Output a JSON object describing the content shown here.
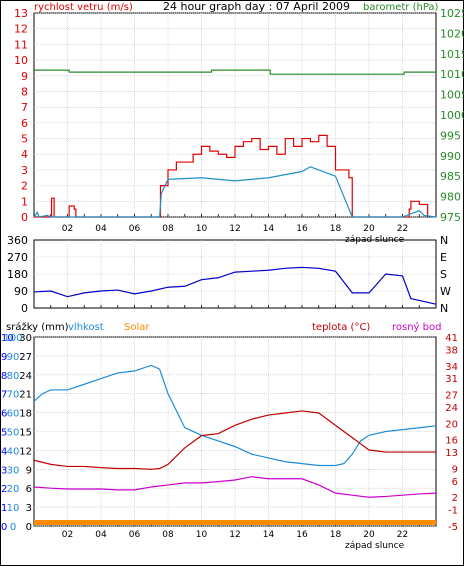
{
  "title": "24 hour graph day : 07 April 2009",
  "wind": {
    "left_label": "rychlost vetru (m/s)",
    "right_label": "barometr (hPa)",
    "left_ticks": [
      "0",
      "1",
      "2",
      "3",
      "4",
      "5",
      "6",
      "7",
      "8",
      "9",
      "10",
      "11",
      "12",
      "13"
    ],
    "right_ticks": [
      "975",
      "980",
      "985",
      "990",
      "995",
      "1000",
      "1005",
      "1010",
      "1015",
      "1020",
      "1025"
    ],
    "footer": "západ slunce",
    "colors": {
      "wind": "#e00000",
      "gust": "#e00000",
      "avg": "#2090c8",
      "baro": "#2a8a2a"
    }
  },
  "direction": {
    "left_ticks": [
      "0",
      "90",
      "180",
      "270",
      "360"
    ],
    "right_ticks": [
      "N",
      "W",
      "S",
      "E",
      "N"
    ],
    "color": "#0000c8"
  },
  "weather": {
    "labels": {
      "precip": "srážky (mm)",
      "humidity": "vlhkost",
      "solar": "Solar",
      "temp": "teplota (°C)",
      "dew": "rosný bod"
    },
    "precip_ticks": [
      "0",
      "1",
      "2",
      "3",
      "4",
      "5",
      "6",
      "7",
      "8",
      "9",
      "10"
    ],
    "humidity_ticks": [
      "0",
      "10",
      "20",
      "30",
      "40",
      "50",
      "60",
      "70",
      "80",
      "90",
      "100"
    ],
    "solar_ticks": [
      "0",
      "3",
      "6",
      "9",
      "12",
      "15",
      "18",
      "21",
      "24",
      "27",
      "30"
    ],
    "temp_ticks": [
      "-5",
      "-1",
      "2",
      "6",
      "9",
      "13",
      "16",
      "20",
      "24",
      "27",
      "31",
      "34",
      "38",
      "41"
    ],
    "footer": "západ slunce",
    "colors": {
      "precip": "#0000ff",
      "humidity": "#1e8ad8",
      "solar": "#ff8c00",
      "temp": "#c00000",
      "dew": "#cc00cc"
    }
  },
  "hour_ticks": [
    "02",
    "04",
    "06",
    "08",
    "10",
    "12",
    "14",
    "16",
    "18",
    "20",
    "22"
  ],
  "chart_data": [
    {
      "type": "line",
      "title": "24 hour graph day : 07 April 2009",
      "x_unit": "hour",
      "xlim": [
        0,
        24
      ],
      "ylabel": "rychlost vetru (m/s)",
      "ylim": [
        0,
        13
      ],
      "y2label": "barometr (hPa)",
      "y2lim": [
        975,
        1025
      ],
      "series": [
        {
          "name": "rychlost vetru",
          "axis": "left",
          "x": [
            0,
            0.3,
            1,
            1.05,
            1.2,
            2,
            2.1,
            2.4,
            2.5,
            7.5,
            7.55,
            8,
            8.5,
            9,
            9.5,
            10,
            10.5,
            11,
            11.5,
            12,
            12.5,
            13,
            13.5,
            14,
            14.5,
            15,
            15.5,
            16,
            16.5,
            17,
            17.5,
            18,
            18.5,
            18.8,
            19,
            22,
            22.4,
            22.5,
            23,
            23.5
          ],
          "y": [
            0,
            0,
            0,
            1.2,
            0,
            0,
            0.7,
            0.5,
            0,
            0,
            2,
            3,
            3.5,
            3.5,
            4,
            4.5,
            4.2,
            4,
            3.8,
            4.5,
            4.8,
            5,
            4.3,
            4.5,
            4,
            5,
            4.5,
            5,
            4.8,
            5.2,
            4.5,
            3,
            3,
            2.5,
            0,
            0,
            0.5,
            1,
            0.8,
            0
          ]
        },
        {
          "name": "",
          "axis": "left",
          "x": [
            0,
            0.2,
            0.3,
            0.8,
            1,
            7.5,
            7.6,
            8,
            10,
            12,
            14,
            16,
            16.5,
            17,
            17.5,
            18,
            19,
            22,
            22.5,
            23,
            23.3,
            24
          ],
          "y": [
            0,
            0.3,
            0,
            0.1,
            0,
            0,
            1.5,
            2.4,
            2.5,
            2.3,
            2.5,
            2.9,
            3.2,
            3,
            2.8,
            2.6,
            0,
            0,
            0.2,
            0.4,
            0.1,
            0
          ]
        },
        {
          "name": "barometr",
          "axis": "right",
          "x": [
            0,
            2,
            2.1,
            10.5,
            10.6,
            14,
            14.1,
            19,
            19.1,
            22,
            22.1,
            24
          ],
          "y": [
            1011,
            1011,
            1010.5,
            1010.5,
            1011,
            1011,
            1010,
            1010,
            1010,
            1010,
            1010.5,
            1010.5
          ]
        }
      ]
    },
    {
      "type": "scatter",
      "x_unit": "hour",
      "xlim": [
        0,
        24
      ],
      "ylim": [
        0,
        360
      ],
      "series": [
        {
          "name": "",
          "x": [
            0,
            1,
            2,
            3,
            4,
            5,
            6,
            7,
            8,
            9,
            10,
            11,
            12,
            13,
            14,
            15,
            16,
            17,
            18,
            19,
            20,
            21,
            22,
            22.5,
            23,
            24
          ],
          "y": [
            85,
            90,
            60,
            80,
            90,
            95,
            75,
            90,
            110,
            115,
            150,
            160,
            190,
            195,
            200,
            210,
            215,
            210,
            195,
            80,
            80,
            180,
            170,
            50,
            40,
            20
          ]
        }
      ]
    },
    {
      "type": "line",
      "x_unit": "hour",
      "xlim": [
        0,
        24
      ],
      "series": [
        {
          "name": "vlhkost",
          "axis": "humidity",
          "ylim": [
            0,
            100
          ],
          "x": [
            0,
            0.5,
            1,
            2,
            3,
            4,
            5,
            6,
            7,
            7.5,
            8,
            9,
            10,
            11,
            12,
            13,
            14,
            15,
            16,
            17,
            18,
            18.5,
            19,
            19.5,
            20,
            21,
            22,
            23,
            24
          ],
          "y": [
            66,
            70,
            72,
            72,
            75,
            78,
            81,
            82,
            85,
            83,
            70,
            52,
            48,
            45,
            42,
            38,
            36,
            34,
            33,
            32,
            32,
            33,
            38,
            45,
            48,
            50,
            51,
            52,
            53
          ]
        },
        {
          "name": "teplota",
          "axis": "temp",
          "ylim": [
            -5,
            41
          ],
          "x": [
            0,
            1,
            2,
            3,
            4,
            5,
            6,
            7,
            7.5,
            8,
            9,
            10,
            11,
            12,
            13,
            14,
            15,
            16,
            17,
            18,
            19,
            19.5,
            20,
            21,
            22,
            23,
            24
          ],
          "y": [
            11,
            10,
            9.5,
            9.5,
            9.2,
            9,
            9,
            8.8,
            9,
            10,
            14,
            17,
            17.5,
            19.5,
            21,
            22,
            22.5,
            23,
            22.5,
            19.5,
            16.5,
            15,
            13.5,
            13,
            13,
            13,
            13
          ]
        },
        {
          "name": "rosný bod",
          "axis": "temp",
          "ylim": [
            -5,
            41
          ],
          "x": [
            0,
            1,
            2,
            3,
            4,
            5,
            6,
            7,
            8,
            9,
            10,
            11,
            12,
            13,
            14,
            15,
            16,
            17,
            18,
            19,
            20,
            21,
            22,
            23,
            24
          ],
          "y": [
            4.5,
            4.2,
            4,
            4,
            4,
            3.8,
            3.8,
            4.5,
            5,
            5.5,
            5.5,
            5.8,
            6.2,
            7,
            6.5,
            6.5,
            6.5,
            5,
            3,
            2.5,
            2,
            2.2,
            2.5,
            2.8,
            3
          ]
        },
        {
          "name": "Solar",
          "axis": "solar",
          "ylim": [
            0,
            30
          ],
          "x": [
            0,
            24
          ],
          "y": [
            0,
            0
          ]
        },
        {
          "name": "srážky",
          "axis": "precip",
          "ylim": [
            0,
            10
          ],
          "x": [
            0,
            24
          ],
          "y": [
            0,
            0
          ]
        }
      ]
    }
  ]
}
